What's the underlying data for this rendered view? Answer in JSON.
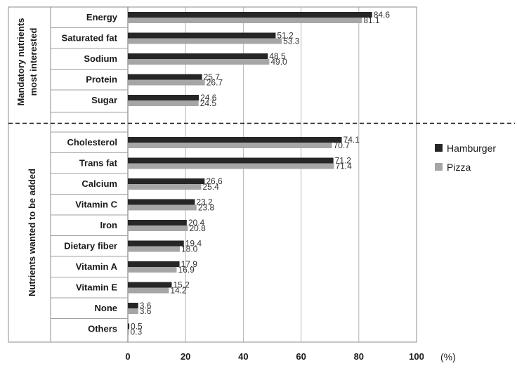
{
  "chart_data": {
    "type": "bar",
    "orientation": "horizontal",
    "x_unit": "(%)",
    "xlim": [
      0,
      100
    ],
    "xticks": [
      0,
      20,
      40,
      60,
      80,
      100
    ],
    "grid": "vertical",
    "legend_position": "right",
    "groups": [
      {
        "label_line1": "Mandatory  nutrients",
        "label_line2": "most  interested",
        "start": 0,
        "count": 5
      },
      {
        "label_line1": "Nutrients  wanted  to  be  added",
        "label_line2": "",
        "start": 5,
        "count": 10
      }
    ],
    "categories": [
      "Energy",
      "Saturated fat",
      "Sodium",
      "Protein",
      "Sugar",
      "Cholesterol",
      "Trans fat",
      "Calcium",
      "Vitamin C",
      "Iron",
      "Dietary fiber",
      "Vitamin A",
      "Vitamin E",
      "None",
      "Others"
    ],
    "series": [
      {
        "name": "Hamburger",
        "color": "#262626",
        "values": [
          84.6,
          51.2,
          48.5,
          25.7,
          24.6,
          74.1,
          71.2,
          26.6,
          23.2,
          20.4,
          19.4,
          17.9,
          15.2,
          3.6,
          0.5
        ]
      },
      {
        "name": "Pizza",
        "color": "#a6a6a6",
        "values": [
          81.1,
          53.3,
          49.0,
          26.7,
          24.5,
          70.7,
          71.4,
          25.4,
          23.8,
          20.8,
          18.0,
          16.9,
          14.2,
          3.6,
          0.3
        ]
      }
    ]
  }
}
